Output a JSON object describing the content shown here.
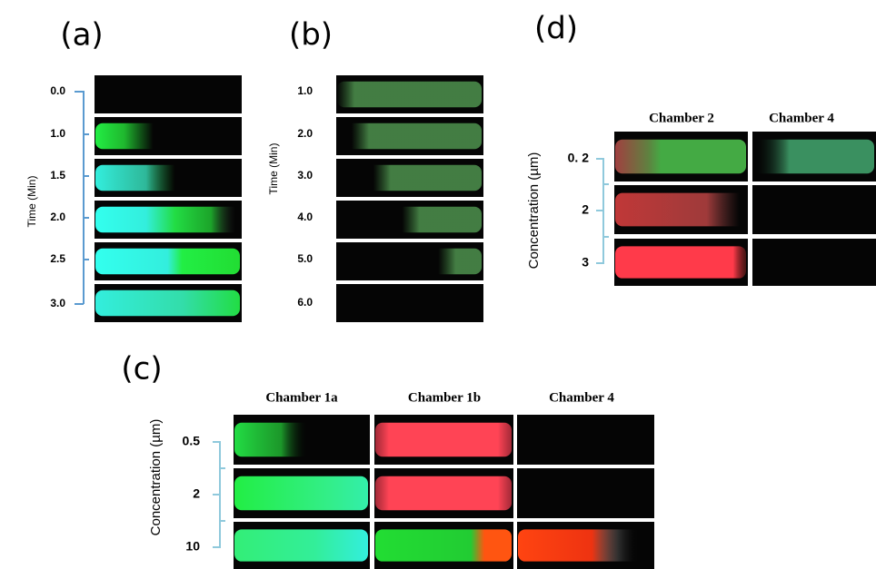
{
  "panels": {
    "a": {
      "label": "(a)",
      "axis_title": "Time (Min)",
      "row_labels": [
        "0.0",
        "1.0",
        "1.5",
        "2.0",
        "2.5",
        "3.0"
      ]
    },
    "b": {
      "label": "(b)",
      "axis_title": "Time (Min)",
      "row_labels": [
        "1.0",
        "2.0",
        "3.0",
        "4.0",
        "5.0",
        "6.0"
      ]
    },
    "c": {
      "label": "(c)",
      "axis_title": "Concentration (µm)",
      "column_headers": [
        "Chamber 1a",
        "Chamber 1b",
        "Chamber 4"
      ],
      "row_labels": [
        "0.5",
        "2",
        "10"
      ]
    },
    "d": {
      "label": "(d)",
      "axis_title": "Concentration (µm)",
      "column_headers": [
        "Chamber 2",
        "Chamber 4"
      ],
      "row_labels": [
        "0. 2",
        "2",
        "3"
      ]
    }
  }
}
